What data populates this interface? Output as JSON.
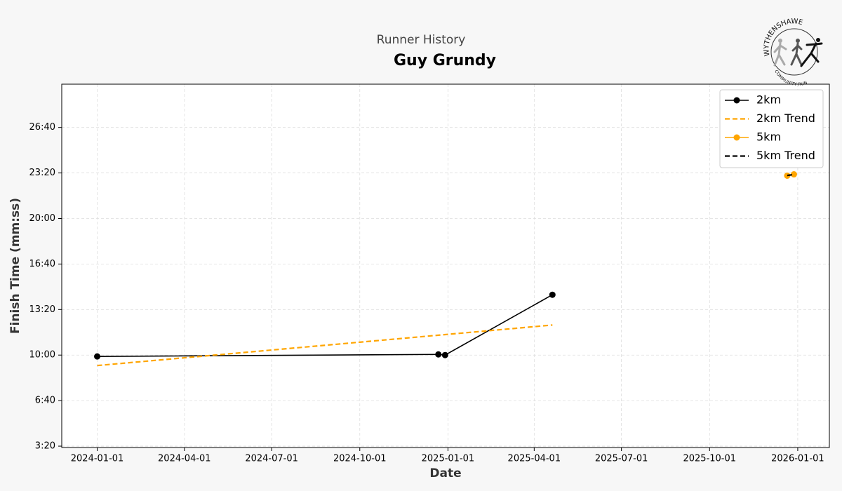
{
  "chart_data": {
    "type": "line",
    "title": "Runner History",
    "subtitle": "Guy Grundy",
    "x_label": "Date",
    "y_label": "Finish Time (mm:ss)",
    "xlim": [
      "2023-11-25",
      "2026-02-03"
    ],
    "xticks": [
      "2024-01-01",
      "2024-04-01",
      "2024-07-01",
      "2024-10-01",
      "2025-01-01",
      "2025-04-01",
      "2025-07-01",
      "2025-10-01",
      "2026-01-01"
    ],
    "ylim": [
      194,
      1790
    ],
    "yticks": [
      {
        "value": 200,
        "label": "3:20"
      },
      {
        "value": 400,
        "label": "6:40"
      },
      {
        "value": 600,
        "label": "10:00"
      },
      {
        "value": 800,
        "label": "13:20"
      },
      {
        "value": 1000,
        "label": "16:40"
      },
      {
        "value": 1200,
        "label": "20:00"
      },
      {
        "value": 1400,
        "label": "23:20"
      },
      {
        "value": 1600,
        "label": "26:40"
      }
    ],
    "grid": true,
    "legend": "upper right",
    "series": [
      {
        "name": "2km",
        "color": "#000000",
        "dashed": false,
        "markers": true,
        "x": [
          "2024-01-01",
          "2024-12-22",
          "2024-12-29",
          "2025-04-20"
        ],
        "values": [
          594,
          603,
          600,
          865
        ]
      },
      {
        "name": "2km Trend",
        "color": "#ffa500",
        "dashed": true,
        "markers": false,
        "x": [
          "2024-01-01",
          "2025-04-20"
        ],
        "values": [
          554,
          732
        ]
      },
      {
        "name": "5km",
        "color": "#ffa500",
        "dashed": false,
        "markers": true,
        "x": [
          "2025-12-21",
          "2025-12-28"
        ],
        "values": [
          1388,
          1394
        ]
      },
      {
        "name": "5km Trend",
        "color": "#000000",
        "dashed": true,
        "markers": false,
        "x": [
          "2025-12-21",
          "2025-12-28"
        ],
        "values": [
          1389,
          1393
        ]
      }
    ]
  },
  "logo": {
    "top": "WYTHENSHAWE",
    "bottom": "COMMUNITY RUN"
  }
}
